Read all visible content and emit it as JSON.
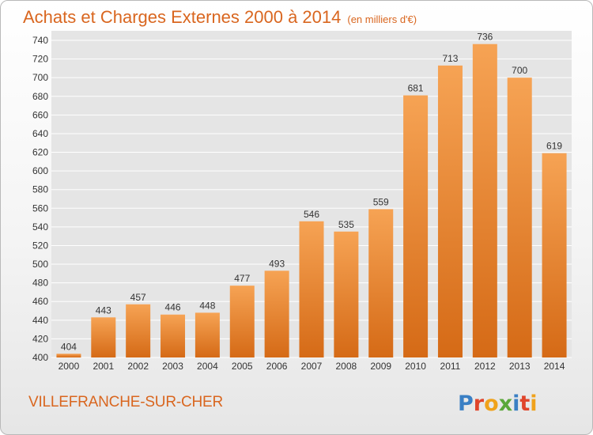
{
  "header": {
    "title": "Achats et Charges Externes 2000 à 2014",
    "subtitle": "(en milliers d'€)"
  },
  "footer": {
    "commune": "VILLEFRANCHE-SUR-CHER",
    "logo": "Proxiti"
  },
  "colors": {
    "accent": "#d9661f",
    "bar_top": "#f6a354",
    "bar_bottom": "#d56a16",
    "grid": "#ffffff"
  },
  "chart_data": {
    "type": "bar",
    "categories": [
      "2000",
      "2001",
      "2002",
      "2003",
      "2004",
      "2005",
      "2006",
      "2007",
      "2008",
      "2009",
      "2010",
      "2011",
      "2012",
      "2013",
      "2014"
    ],
    "values": [
      404,
      443,
      457,
      446,
      448,
      477,
      493,
      546,
      535,
      559,
      681,
      713,
      736,
      700,
      619
    ],
    "ylim": [
      400,
      740
    ],
    "yticks": [
      400,
      420,
      440,
      460,
      480,
      500,
      520,
      540,
      560,
      580,
      600,
      620,
      640,
      660,
      680,
      700,
      720,
      740
    ],
    "grid": true
  }
}
